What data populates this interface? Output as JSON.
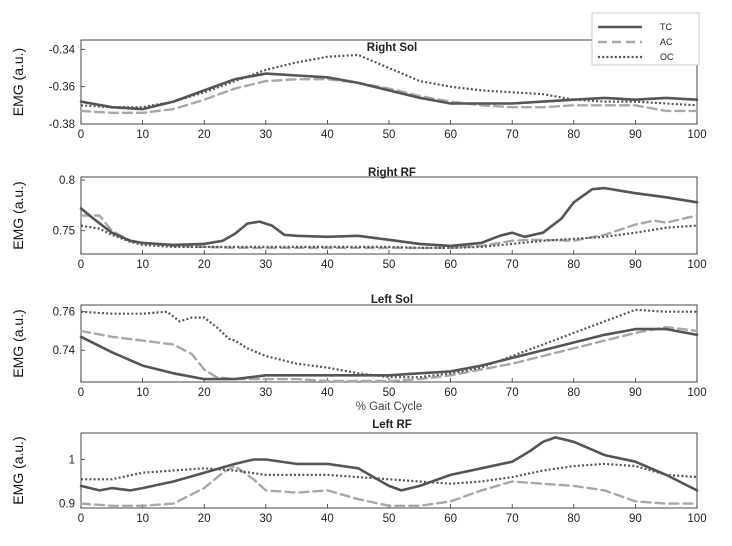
{
  "chart_data": [
    {
      "type": "line",
      "title": "Right Sol",
      "ylabel": "EMG (a.u.)",
      "xlabel": "",
      "xlim": [
        0,
        100
      ],
      "ylim": [
        -0.38,
        -0.335
      ],
      "yticks": [
        -0.34,
        -0.36,
        -0.38
      ],
      "xticks": [
        0,
        10,
        20,
        30,
        40,
        50,
        60,
        70,
        80,
        90,
        100
      ],
      "grid": false,
      "series": [
        {
          "name": "TC",
          "x": [
            0,
            5,
            10,
            15,
            20,
            25,
            30,
            35,
            40,
            45,
            50,
            55,
            60,
            65,
            70,
            75,
            80,
            85,
            90,
            95,
            100
          ],
          "y": [
            -0.368,
            -0.371,
            -0.372,
            -0.368,
            -0.362,
            -0.356,
            -0.353,
            -0.354,
            -0.355,
            -0.358,
            -0.362,
            -0.366,
            -0.369,
            -0.369,
            -0.369,
            -0.368,
            -0.367,
            -0.366,
            -0.367,
            -0.366,
            -0.367
          ]
        },
        {
          "name": "AC",
          "x": [
            0,
            5,
            10,
            15,
            20,
            25,
            30,
            35,
            40,
            45,
            50,
            55,
            60,
            65,
            70,
            75,
            80,
            85,
            90,
            95,
            100
          ],
          "y": [
            -0.373,
            -0.374,
            -0.374,
            -0.372,
            -0.367,
            -0.361,
            -0.357,
            -0.356,
            -0.356,
            -0.358,
            -0.361,
            -0.365,
            -0.368,
            -0.37,
            -0.371,
            -0.371,
            -0.37,
            -0.37,
            -0.37,
            -0.373,
            -0.373
          ]
        },
        {
          "name": "OC",
          "x": [
            0,
            5,
            10,
            15,
            20,
            25,
            30,
            35,
            40,
            45,
            50,
            55,
            60,
            65,
            70,
            75,
            80,
            85,
            90,
            95,
            100
          ],
          "y": [
            -0.37,
            -0.371,
            -0.371,
            -0.368,
            -0.363,
            -0.357,
            -0.351,
            -0.347,
            -0.344,
            -0.343,
            -0.35,
            -0.357,
            -0.36,
            -0.362,
            -0.363,
            -0.364,
            -0.367,
            -0.368,
            -0.368,
            -0.369,
            -0.37
          ]
        }
      ]
    },
    {
      "type": "line",
      "title": "Right RF",
      "ylabel": "EMG (a.u.)",
      "xlabel": "",
      "xlim": [
        0,
        100
      ],
      "ylim": [
        0.727,
        0.803
      ],
      "yticks": [
        0.8,
        0.75
      ],
      "xticks": [
        0,
        10,
        20,
        30,
        40,
        50,
        60,
        70,
        80,
        90,
        100
      ],
      "grid": false,
      "series": [
        {
          "name": "TC",
          "x": [
            0,
            2,
            5,
            8,
            10,
            15,
            20,
            23,
            25,
            27,
            29,
            31,
            33,
            35,
            40,
            45,
            50,
            55,
            60,
            65,
            68,
            70,
            72,
            75,
            78,
            80,
            83,
            85,
            88,
            90,
            95,
            100
          ],
          "y": [
            0.772,
            0.762,
            0.748,
            0.74,
            0.738,
            0.736,
            0.737,
            0.74,
            0.747,
            0.757,
            0.759,
            0.755,
            0.746,
            0.745,
            0.744,
            0.745,
            0.741,
            0.737,
            0.735,
            0.738,
            0.745,
            0.748,
            0.744,
            0.748,
            0.762,
            0.778,
            0.791,
            0.792,
            0.789,
            0.787,
            0.783,
            0.778
          ]
        },
        {
          "name": "AC",
          "x": [
            0,
            3,
            5,
            8,
            10,
            15,
            20,
            25,
            30,
            35,
            40,
            45,
            50,
            55,
            60,
            65,
            70,
            73,
            75,
            80,
            85,
            90,
            93,
            95,
            100
          ],
          "y": [
            0.765,
            0.765,
            0.75,
            0.74,
            0.738,
            0.735,
            0.734,
            0.733,
            0.733,
            0.733,
            0.733,
            0.733,
            0.733,
            0.733,
            0.733,
            0.735,
            0.74,
            0.741,
            0.741,
            0.74,
            0.746,
            0.756,
            0.76,
            0.758,
            0.765
          ]
        },
        {
          "name": "OC",
          "x": [
            0,
            3,
            5,
            8,
            10,
            15,
            20,
            25,
            30,
            35,
            40,
            45,
            50,
            55,
            60,
            65,
            70,
            75,
            80,
            85,
            90,
            95,
            100
          ],
          "y": [
            0.755,
            0.752,
            0.746,
            0.739,
            0.736,
            0.734,
            0.734,
            0.734,
            0.734,
            0.734,
            0.734,
            0.734,
            0.734,
            0.733,
            0.733,
            0.734,
            0.737,
            0.74,
            0.742,
            0.744,
            0.748,
            0.753,
            0.755
          ]
        }
      ]
    },
    {
      "type": "line",
      "title": "Left Sol",
      "ylabel": "EMG (a.u.)",
      "xlabel": "% Gait Cycle",
      "xlim": [
        0,
        100
      ],
      "ylim": [
        0.7235,
        0.7635
      ],
      "yticks": [
        0.76,
        0.74
      ],
      "xticks": [
        0,
        10,
        20,
        30,
        40,
        50,
        60,
        70,
        80,
        90,
        100
      ],
      "grid": false,
      "series": [
        {
          "name": "TC",
          "x": [
            0,
            5,
            10,
            15,
            20,
            25,
            30,
            35,
            40,
            45,
            50,
            55,
            60,
            65,
            70,
            75,
            80,
            85,
            90,
            95,
            100
          ],
          "y": [
            0.747,
            0.739,
            0.732,
            0.728,
            0.725,
            0.725,
            0.727,
            0.727,
            0.727,
            0.727,
            0.727,
            0.728,
            0.729,
            0.732,
            0.736,
            0.74,
            0.744,
            0.748,
            0.751,
            0.751,
            0.748
          ]
        },
        {
          "name": "AC",
          "x": [
            0,
            5,
            10,
            15,
            18,
            20,
            22,
            25,
            30,
            35,
            40,
            45,
            50,
            55,
            60,
            65,
            70,
            75,
            80,
            85,
            90,
            95,
            100
          ],
          "y": [
            0.75,
            0.747,
            0.745,
            0.743,
            0.738,
            0.73,
            0.726,
            0.725,
            0.725,
            0.725,
            0.724,
            0.724,
            0.724,
            0.725,
            0.727,
            0.73,
            0.733,
            0.737,
            0.741,
            0.745,
            0.749,
            0.752,
            0.75
          ]
        },
        {
          "name": "OC",
          "x": [
            0,
            5,
            10,
            14,
            16,
            18,
            20,
            22,
            24,
            25,
            27,
            30,
            35,
            40,
            45,
            50,
            55,
            60,
            65,
            70,
            75,
            80,
            85,
            90,
            95,
            100
          ],
          "y": [
            0.76,
            0.759,
            0.759,
            0.76,
            0.755,
            0.757,
            0.757,
            0.752,
            0.746,
            0.745,
            0.741,
            0.737,
            0.733,
            0.731,
            0.728,
            0.726,
            0.726,
            0.728,
            0.731,
            0.737,
            0.743,
            0.749,
            0.755,
            0.761,
            0.76,
            0.76
          ]
        }
      ]
    },
    {
      "type": "line",
      "title": "Left RF",
      "ylabel": "EMG (a.u.)",
      "xlabel": "",
      "xlim": [
        0,
        100
      ],
      "ylim": [
        0.89,
        1.06
      ],
      "yticks": [
        1,
        0.9
      ],
      "xticks": [
        0,
        10,
        20,
        30,
        40,
        50,
        60,
        70,
        80,
        90,
        100
      ],
      "grid": false,
      "series": [
        {
          "name": "TC",
          "x": [
            0,
            3,
            5,
            8,
            10,
            15,
            20,
            25,
            28,
            30,
            35,
            40,
            45,
            50,
            52,
            55,
            60,
            65,
            70,
            73,
            75,
            77,
            80,
            85,
            90,
            95,
            100
          ],
          "y": [
            0.94,
            0.93,
            0.935,
            0.93,
            0.935,
            0.95,
            0.97,
            0.99,
            1.0,
            1.0,
            0.99,
            0.99,
            0.98,
            0.94,
            0.93,
            0.94,
            0.965,
            0.98,
            0.995,
            1.02,
            1.04,
            1.05,
            1.04,
            1.01,
            0.995,
            0.965,
            0.93
          ]
        },
        {
          "name": "AC",
          "x": [
            0,
            5,
            10,
            15,
            20,
            23,
            25,
            28,
            30,
            35,
            40,
            45,
            50,
            55,
            60,
            65,
            70,
            75,
            80,
            85,
            90,
            95,
            100
          ],
          "y": [
            0.9,
            0.895,
            0.895,
            0.9,
            0.935,
            0.97,
            0.985,
            0.955,
            0.93,
            0.925,
            0.93,
            0.91,
            0.895,
            0.895,
            0.905,
            0.93,
            0.95,
            0.945,
            0.94,
            0.93,
            0.905,
            0.9,
            0.9
          ]
        },
        {
          "name": "OC",
          "x": [
            0,
            5,
            10,
            15,
            20,
            25,
            30,
            35,
            40,
            45,
            50,
            55,
            60,
            65,
            70,
            75,
            80,
            85,
            90,
            95,
            100
          ],
          "y": [
            0.955,
            0.955,
            0.97,
            0.975,
            0.98,
            0.975,
            0.965,
            0.965,
            0.965,
            0.96,
            0.955,
            0.95,
            0.945,
            0.95,
            0.96,
            0.975,
            0.985,
            0.99,
            0.985,
            0.965,
            0.96
          ]
        }
      ]
    }
  ],
  "legend": {
    "placement": "top-right",
    "entries": [
      {
        "name": "TC",
        "style": "solid",
        "color": "#555555"
      },
      {
        "name": "AC",
        "style": "dashed",
        "color": "#a8a8a8"
      },
      {
        "name": "OC",
        "style": "dotted",
        "color": "#555555"
      }
    ]
  },
  "styles": {
    "TC": {
      "color": "#555555",
      "dash": "",
      "width": 2.6
    },
    "AC": {
      "color": "#a8a8a8",
      "dash": "9 5",
      "width": 2.4
    },
    "OC": {
      "color": "#555555",
      "dash": "2 2.2",
      "width": 2.2
    }
  }
}
